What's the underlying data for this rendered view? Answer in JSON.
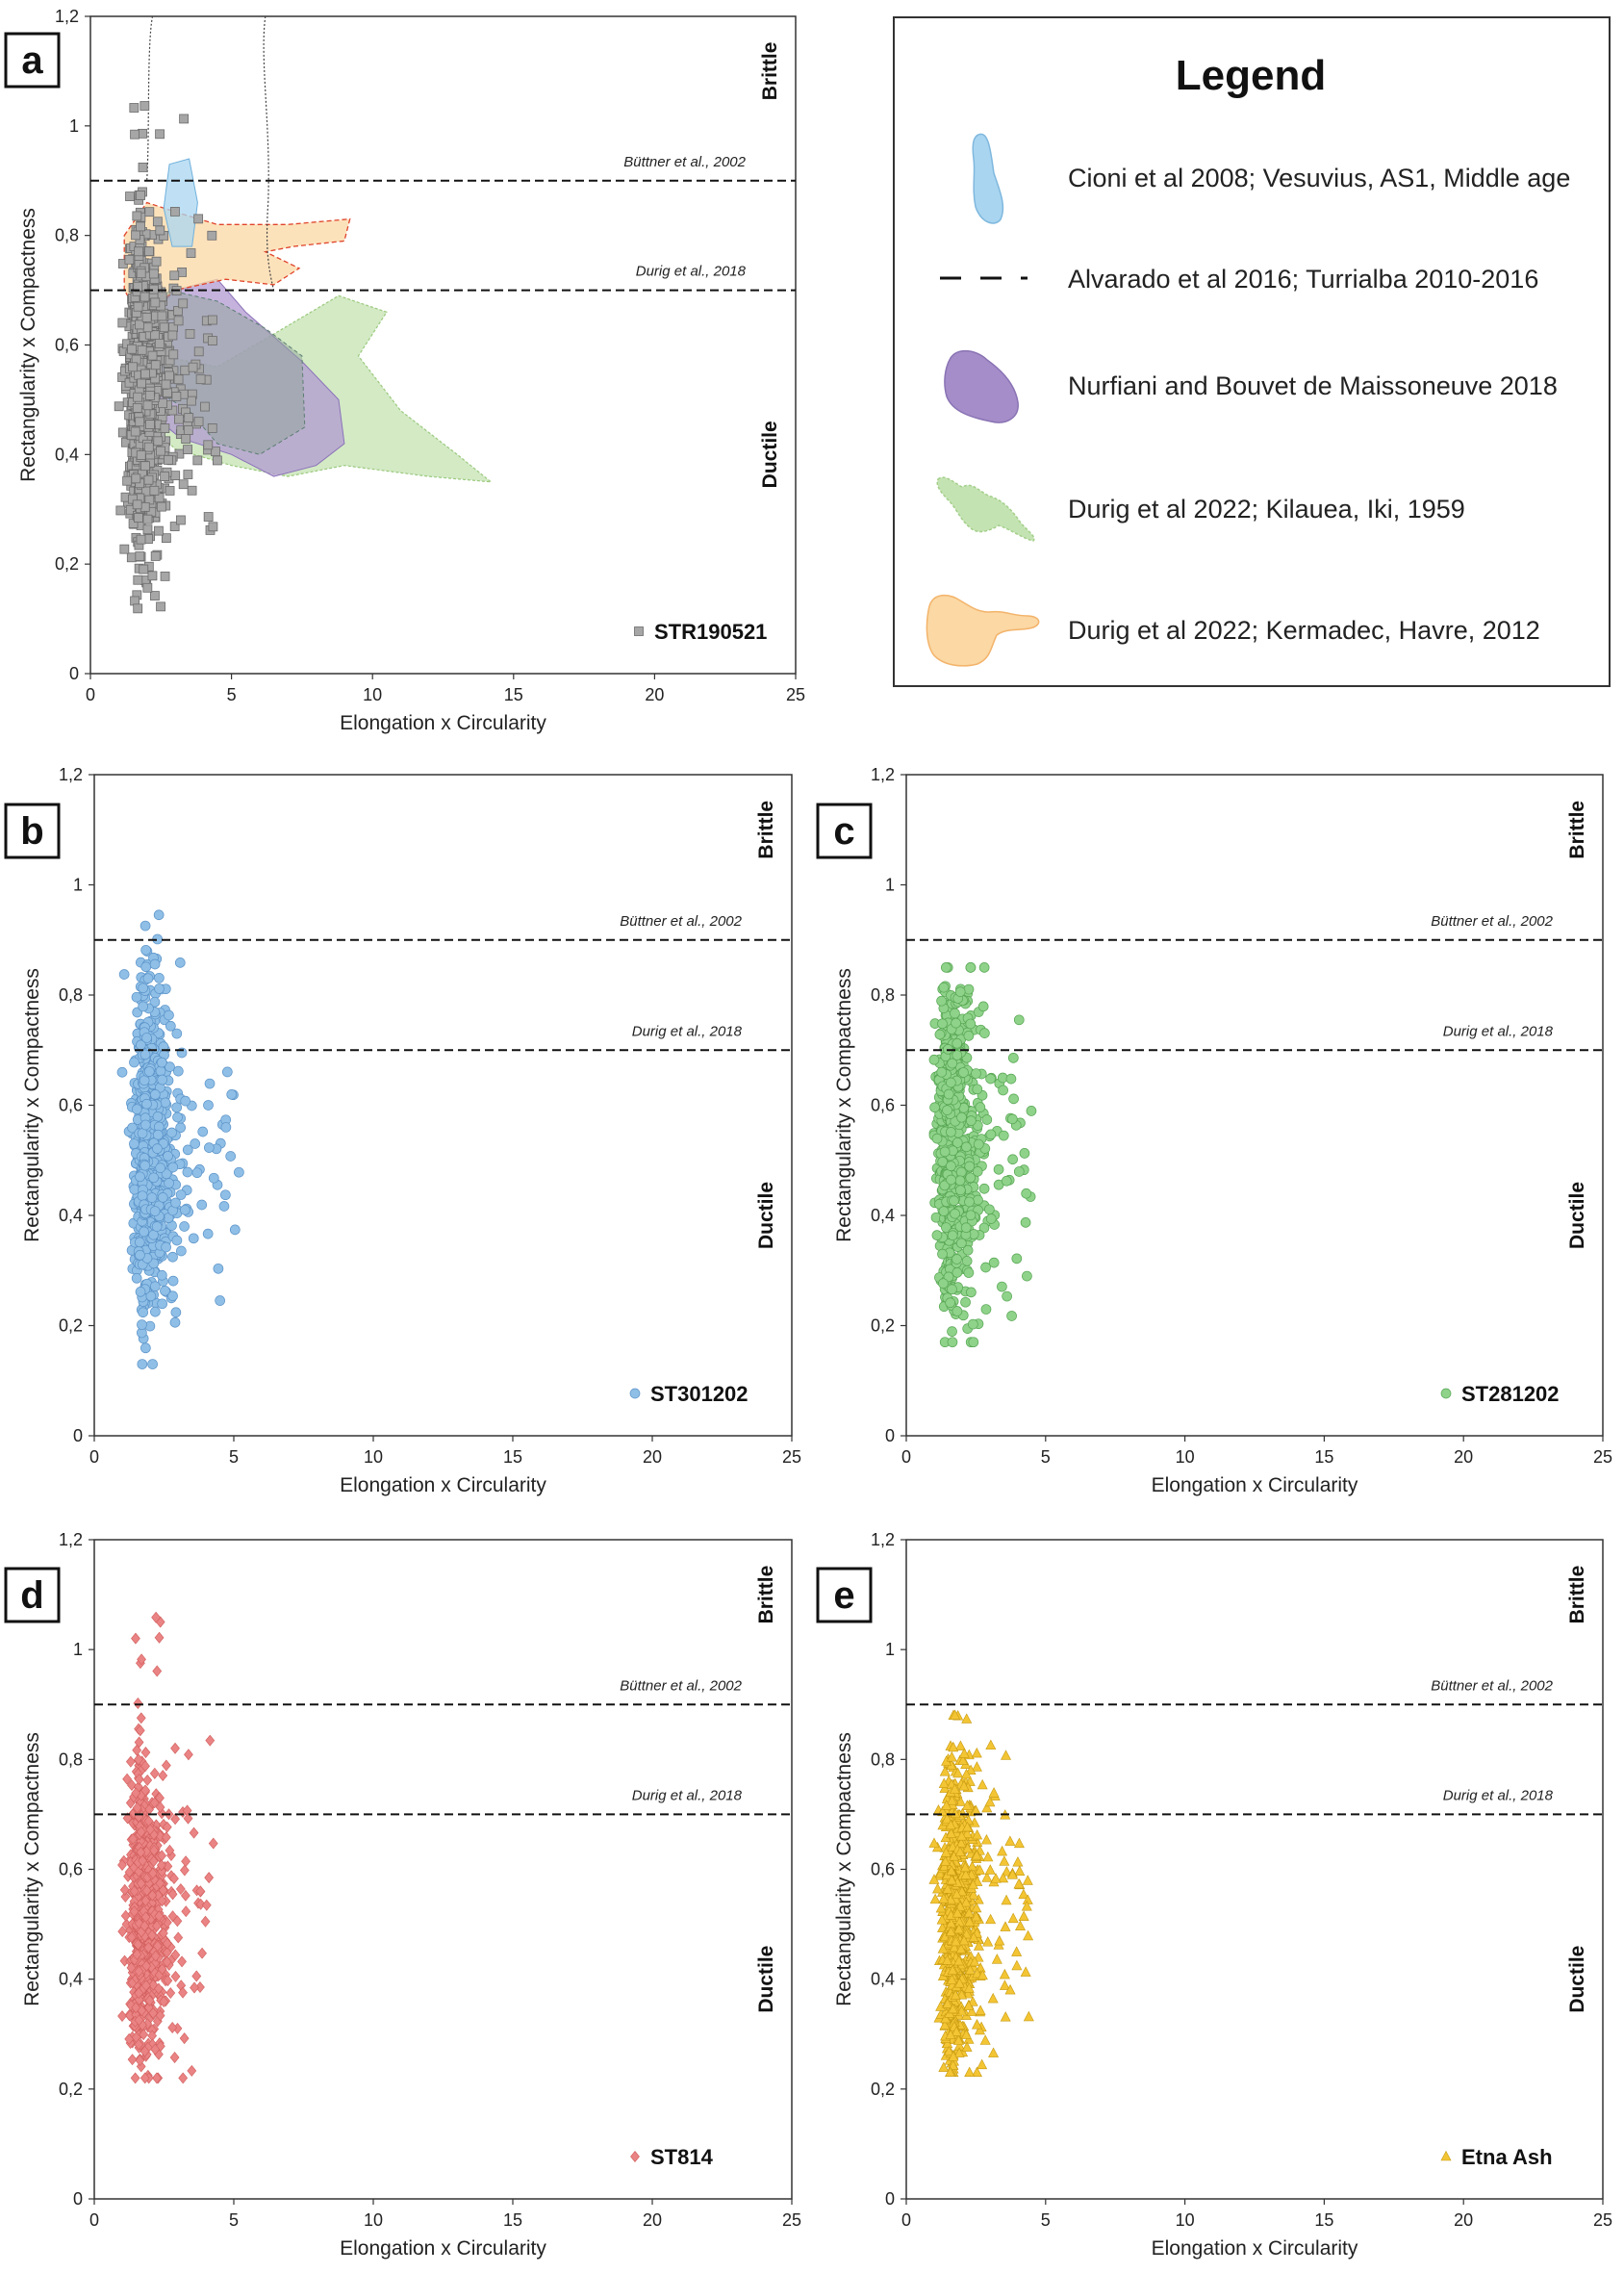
{
  "figure": {
    "legend": {
      "title": "Legend",
      "entries": [
        {
          "label": "Cioni et al 2008; Vesuvius, AS1, Middle age",
          "icon": "blue-blob-icon",
          "color": "#a9d5f0"
        },
        {
          "label": "Alvarado et al 2016; Turrialba 2010-2016",
          "icon": "dashed-line-icon",
          "color": "#111111"
        },
        {
          "label": "Nurfiani and Bouvet de Maissoneuve 2018",
          "icon": "purple-blob-icon",
          "color": "#a48dc8"
        },
        {
          "label": "Durig et al 2022; Kilauea, Iki, 1959",
          "icon": "green-blob-icon",
          "color": "#c4e3b2"
        },
        {
          "label": "Durig et al 2022; Kermadec, Havre, 2012",
          "icon": "orange-blob-icon",
          "color": "#fbd8a4"
        }
      ]
    }
  },
  "chart_data": [
    {
      "panel": "a",
      "type": "scatter",
      "xlabel": "Elongation x Circularity",
      "ylabel": "Rectangularity x Compactness",
      "xlim": [
        0,
        25
      ],
      "ylim": [
        0,
        1.2
      ],
      "xticks": [
        "0",
        "5",
        "10",
        "15",
        "20",
        "25"
      ],
      "yticks": [
        "0",
        "0,2",
        "0,4",
        "0,6",
        "0,8",
        "1",
        "1,2"
      ],
      "ref_lines": [
        {
          "y": 0.9,
          "label": "Büttner et al., 2002"
        },
        {
          "y": 0.7,
          "label": "Durig et al., 2018"
        }
      ],
      "zones": {
        "upper": "Brittle",
        "lower": "Ductile"
      },
      "series": [
        {
          "name": "STR190521",
          "marker": "square",
          "color": "#a6a6a6",
          "n_points": 1200,
          "x_range": [
            1.0,
            4.5
          ],
          "x_mode": 1.8,
          "y_range": [
            0.1,
            1.05
          ],
          "y_center": 0.52
        }
      ],
      "reference_fields": [
        "Cioni et al 2008",
        "Alvarado et al 2016",
        "Nurfiani and Bouvet de Maissoneuve 2018",
        "Durig et al 2022 Kilauea",
        "Durig et al 2022 Kermadec"
      ]
    },
    {
      "panel": "b",
      "type": "scatter",
      "xlabel": "Elongation x Circularity",
      "ylabel": "Rectangularity x Compactness",
      "xlim": [
        0,
        25
      ],
      "ylim": [
        0,
        1.2
      ],
      "xticks": [
        "0",
        "5",
        "10",
        "15",
        "20",
        "25"
      ],
      "yticks": [
        "0",
        "0,2",
        "0,4",
        "0,6",
        "0,8",
        "1",
        "1,2"
      ],
      "ref_lines": [
        {
          "y": 0.9,
          "label": "Büttner et al., 2002"
        },
        {
          "y": 0.7,
          "label": "Durig et al., 2018"
        }
      ],
      "zones": {
        "upper": "Brittle",
        "lower": "Ductile"
      },
      "series": [
        {
          "name": "ST301202",
          "marker": "circle",
          "color": "#8fbfe6",
          "n_points": 900,
          "x_range": [
            1.0,
            5.2
          ],
          "x_mode": 1.9,
          "y_range": [
            0.13,
            0.97
          ],
          "y_center": 0.52
        }
      ]
    },
    {
      "panel": "c",
      "type": "scatter",
      "xlabel": "Elongation x Circularity",
      "ylabel": "Rectangularity x Compactness",
      "xlim": [
        0,
        25
      ],
      "ylim": [
        0,
        1.2
      ],
      "xticks": [
        "0",
        "5",
        "10",
        "15",
        "20",
        "25"
      ],
      "yticks": [
        "0",
        "0,2",
        "0,4",
        "0,6",
        "0,8",
        "1",
        "1,2"
      ],
      "ref_lines": [
        {
          "y": 0.9,
          "label": "Büttner et al., 2002"
        },
        {
          "y": 0.7,
          "label": "Durig et al., 2018"
        }
      ],
      "zones": {
        "upper": "Brittle",
        "lower": "Ductile"
      },
      "series": [
        {
          "name": "ST281202",
          "marker": "circle",
          "color": "#8fd28a",
          "n_points": 900,
          "x_range": [
            1.0,
            4.5
          ],
          "x_mode": 1.6,
          "y_range": [
            0.17,
            0.85
          ],
          "y_center": 0.52
        }
      ]
    },
    {
      "panel": "d",
      "type": "scatter",
      "xlabel": "Elongation x Circularity",
      "ylabel": "Rectangularity x Compactness",
      "xlim": [
        0,
        25
      ],
      "ylim": [
        0,
        1.2
      ],
      "xticks": [
        "0",
        "5",
        "10",
        "15",
        "20",
        "25"
      ],
      "yticks": [
        "0",
        "0,2",
        "0,4",
        "0,6",
        "0,8",
        "1",
        "1,2"
      ],
      "ref_lines": [
        {
          "y": 0.9,
          "label": "Büttner et al., 2002"
        },
        {
          "y": 0.7,
          "label": "Durig et al., 2018"
        }
      ],
      "zones": {
        "upper": "Brittle",
        "lower": "Ductile"
      },
      "series": [
        {
          "name": "ST814",
          "marker": "diamond",
          "color": "#ea8383",
          "n_points": 850,
          "x_range": [
            1.0,
            4.3
          ],
          "x_mode": 1.7,
          "y_range": [
            0.22,
            1.1
          ],
          "y_center": 0.52
        }
      ]
    },
    {
      "panel": "e",
      "type": "scatter",
      "xlabel": "Elongation x Circularity",
      "ylabel": "Rectangularity x Compactness",
      "xlim": [
        0,
        25
      ],
      "ylim": [
        0,
        1.2
      ],
      "xticks": [
        "0",
        "5",
        "10",
        "15",
        "20",
        "25"
      ],
      "yticks": [
        "0",
        "0,2",
        "0,4",
        "0,6",
        "0,8",
        "1",
        "1,2"
      ],
      "ref_lines": [
        {
          "y": 0.9,
          "label": "Büttner et al., 2002"
        },
        {
          "y": 0.7,
          "label": "Durig et al., 2018"
        }
      ],
      "zones": {
        "upper": "Brittle",
        "lower": "Ductile"
      },
      "series": [
        {
          "name": "Etna Ash",
          "marker": "triangle",
          "color": "#f3c534",
          "n_points": 850,
          "x_range": [
            1.0,
            4.5
          ],
          "x_mode": 1.7,
          "y_range": [
            0.23,
            0.88
          ],
          "y_center": 0.52
        }
      ]
    }
  ]
}
